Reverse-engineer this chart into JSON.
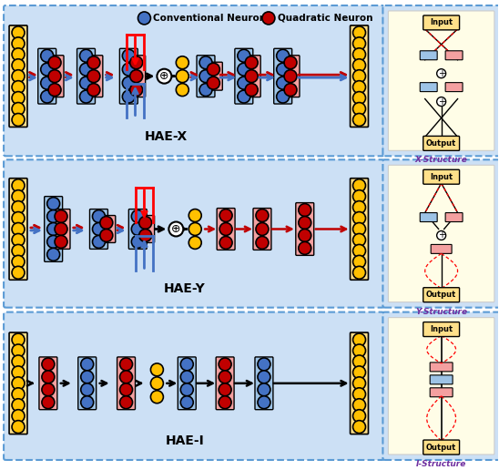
{
  "blue_neuron_color": "#4472c4",
  "red_neuron_color": "#c00000",
  "yellow_node_color": "#ffc000",
  "blue_bg": "#9dc3e6",
  "red_bg": "#f4a0a0",
  "yellow_bg": "#ffe08a",
  "panel_bg": "#cce0f5",
  "white_bg": "#ffffff",
  "legend_conventional": "Conventional Neuron",
  "legend_quadratic": "Quadratic Neuron",
  "structure_color": "#7030a0",
  "panel_labels": [
    "HAE-X",
    "HAE-Y",
    "HAE-I"
  ],
  "structure_labels": [
    "X-Structure",
    "Y-Structure",
    "I-Structure"
  ]
}
